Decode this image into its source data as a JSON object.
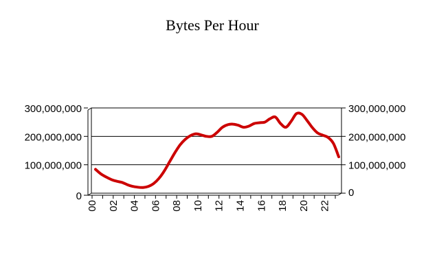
{
  "chart_data": {
    "type": "line",
    "title": "Bytes Per Hour",
    "xlabel": "",
    "ylabel": "",
    "x": [
      0,
      0.5,
      1,
      1.5,
      2,
      2.5,
      3,
      3.5,
      4,
      4.5,
      5,
      5.5,
      6,
      6.5,
      7,
      7.5,
      8,
      8.5,
      9,
      9.5,
      10,
      10.5,
      11,
      11.5,
      12,
      12.5,
      13,
      13.5,
      14,
      14.5,
      15,
      15.5,
      16,
      16.5,
      17,
      17.5,
      18,
      18.5,
      19,
      19.5,
      20,
      20.5,
      21,
      21.5,
      22,
      22.5,
      23
    ],
    "series": [
      {
        "values": [
          84000000,
          68000000,
          57000000,
          48000000,
          42000000,
          38000000,
          30000000,
          24000000,
          21000000,
          20000000,
          24000000,
          34000000,
          52000000,
          78000000,
          110000000,
          142000000,
          170000000,
          190000000,
          203000000,
          209000000,
          205000000,
          200000000,
          200000000,
          214000000,
          232000000,
          241000000,
          243000000,
          239000000,
          232000000,
          236000000,
          245000000,
          248000000,
          250000000,
          262000000,
          268000000,
          245000000,
          232000000,
          253000000,
          280000000,
          278000000,
          256000000,
          231000000,
          212000000,
          204000000,
          196000000,
          175000000,
          128000000
        ],
        "color": "#cc0000"
      }
    ],
    "x_tick_labels": [
      "00",
      "02",
      "04",
      "06",
      "08",
      "10",
      "12",
      "14",
      "16",
      "18",
      "20",
      "22"
    ],
    "x_tick_values": [
      0,
      2,
      4,
      6,
      8,
      10,
      12,
      14,
      16,
      18,
      20,
      22
    ],
    "xlim": [
      0,
      23
    ],
    "ylim": [
      0,
      300000000
    ],
    "left_ticks": [
      "300,000,000",
      "200,000,000",
      "100,000,000",
      "0"
    ],
    "left_tick_values": [
      300000000,
      200000000,
      100000000,
      0
    ],
    "right_ticks": [
      "300,000,000",
      "200,000,000",
      "100,000,000",
      "0"
    ],
    "right_tick_values": [
      300000000,
      200000000,
      100000000,
      0
    ],
    "grid": true,
    "legend": "none",
    "colors": {
      "line": "#cc0000",
      "grid": "#000000",
      "axis": "#000000"
    }
  }
}
